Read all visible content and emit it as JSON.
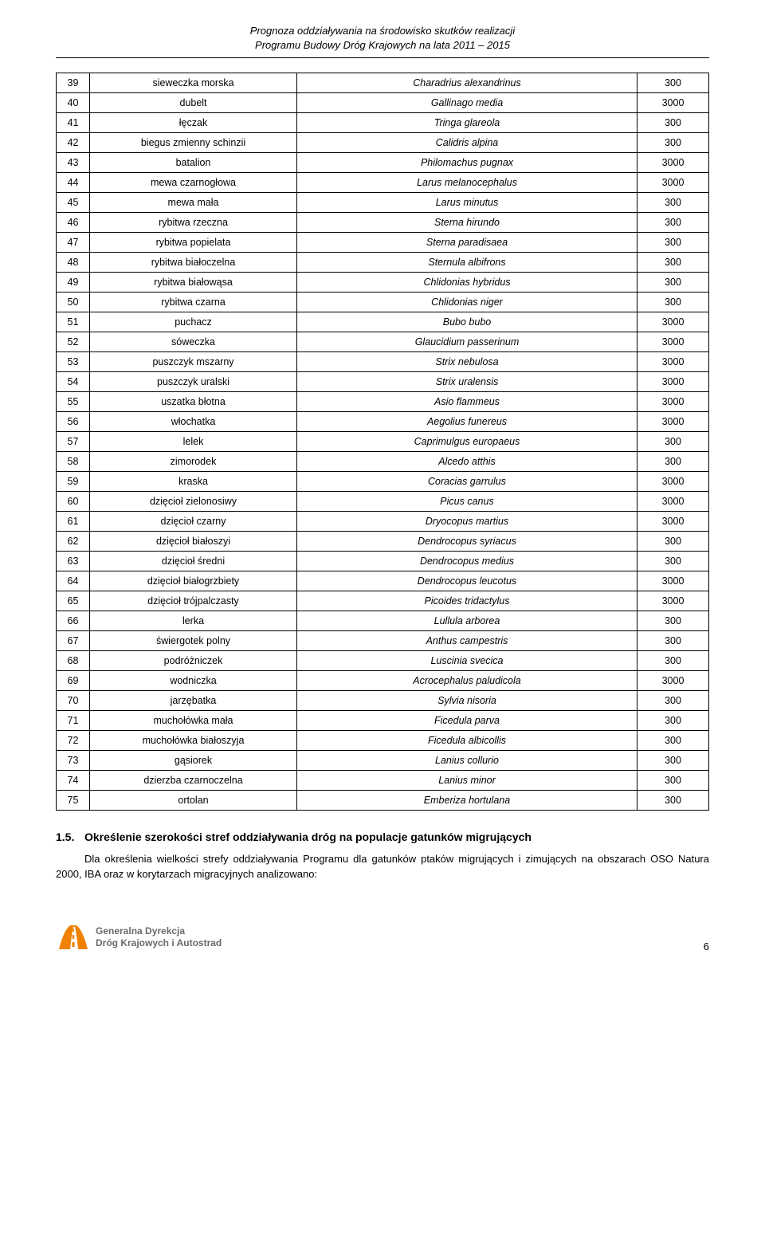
{
  "header": {
    "line1": "Prognoza oddziaływania na środowisko skutków realizacji",
    "line2": "Programu Budowy Dróg Krajowych na lata 2011 – 2015"
  },
  "rows": [
    {
      "n": "39",
      "pl": "sieweczka morska",
      "lat": "Charadrius alexandrinus",
      "v": "300"
    },
    {
      "n": "40",
      "pl": "dubelt",
      "lat": "Gallinago media",
      "v": "3000"
    },
    {
      "n": "41",
      "pl": "łęczak",
      "lat": "Tringa glareola",
      "v": "300"
    },
    {
      "n": "42",
      "pl": "biegus zmienny schinzii",
      "lat": "Calidris alpina",
      "v": "300"
    },
    {
      "n": "43",
      "pl": "batalion",
      "lat": "Philomachus pugnax",
      "v": "3000"
    },
    {
      "n": "44",
      "pl": "mewa czarnogłowa",
      "lat": "Larus melanocephalus",
      "v": "3000"
    },
    {
      "n": "45",
      "pl": "mewa mała",
      "lat": "Larus minutus",
      "v": "300"
    },
    {
      "n": "46",
      "pl": "rybitwa rzeczna",
      "lat": "Sterna hirundo",
      "v": "300"
    },
    {
      "n": "47",
      "pl": "rybitwa popielata",
      "lat": "Sterna paradisaea",
      "v": "300"
    },
    {
      "n": "48",
      "pl": "rybitwa białoczelna",
      "lat": "Sternula albifrons",
      "v": "300"
    },
    {
      "n": "49",
      "pl": "rybitwa białowąsa",
      "lat": "Chlidonias hybridus",
      "v": "300"
    },
    {
      "n": "50",
      "pl": "rybitwa czarna",
      "lat": "Chlidonias niger",
      "v": "300"
    },
    {
      "n": "51",
      "pl": "puchacz",
      "lat": "Bubo bubo",
      "v": "3000"
    },
    {
      "n": "52",
      "pl": "sóweczka",
      "lat": "Glaucidium passerinum",
      "v": "3000"
    },
    {
      "n": "53",
      "pl": "puszczyk mszarny",
      "lat": "Strix nebulosa",
      "v": "3000"
    },
    {
      "n": "54",
      "pl": "puszczyk uralski",
      "lat": "Strix uralensis",
      "v": "3000"
    },
    {
      "n": "55",
      "pl": "uszatka błotna",
      "lat": "Asio flammeus",
      "v": "3000"
    },
    {
      "n": "56",
      "pl": "włochatka",
      "lat": "Aegolius funereus",
      "v": "3000"
    },
    {
      "n": "57",
      "pl": "lelek",
      "lat": "Caprimulgus europaeus",
      "v": "300"
    },
    {
      "n": "58",
      "pl": "zimorodek",
      "lat": "Alcedo atthis",
      "v": "300"
    },
    {
      "n": "59",
      "pl": "kraska",
      "lat": "Coracias garrulus",
      "v": "3000"
    },
    {
      "n": "60",
      "pl": "dzięcioł zielonosiwy",
      "lat": "Picus canus",
      "v": "3000"
    },
    {
      "n": "61",
      "pl": "dzięcioł czarny",
      "lat": "Dryocopus martius",
      "v": "3000"
    },
    {
      "n": "62",
      "pl": "dzięcioł białoszyi",
      "lat": "Dendrocopus syriacus",
      "v": "300"
    },
    {
      "n": "63",
      "pl": "dzięcioł średni",
      "lat": "Dendrocopus medius",
      "v": "300"
    },
    {
      "n": "64",
      "pl": "dzięcioł białogrzbiety",
      "lat": "Dendrocopus leucotus",
      "v": "3000"
    },
    {
      "n": "65",
      "pl": "dzięcioł trójpalczasty",
      "lat": "Picoides tridactylus",
      "v": "3000"
    },
    {
      "n": "66",
      "pl": "lerka",
      "lat": "Lullula arborea",
      "v": "300"
    },
    {
      "n": "67",
      "pl": "świergotek polny",
      "lat": "Anthus campestris",
      "v": "300"
    },
    {
      "n": "68",
      "pl": "podróżniczek",
      "lat": "Luscinia svecica",
      "v": "300"
    },
    {
      "n": "69",
      "pl": "wodniczka",
      "lat": "Acrocephalus paludicola",
      "v": "3000"
    },
    {
      "n": "70",
      "pl": "jarzębatka",
      "lat": "Sylvia nisoria",
      "v": "300"
    },
    {
      "n": "71",
      "pl": "muchołówka mała",
      "lat": "Ficedula parva",
      "v": "300"
    },
    {
      "n": "72",
      "pl": "muchołówka białoszyja",
      "lat": "Ficedula albicollis",
      "v": "300"
    },
    {
      "n": "73",
      "pl": "gąsiorek",
      "lat": "Lanius collurio",
      "v": "300"
    },
    {
      "n": "74",
      "pl": "dzierzba czarnoczelna",
      "lat": "Lanius minor",
      "v": "300"
    },
    {
      "n": "75",
      "pl": "ortolan",
      "lat": "Emberiza hortulana",
      "v": "300"
    }
  ],
  "section": {
    "num": "1.5.",
    "title": "Określenie szerokości stref oddziaływania dróg na populacje gatunków migrujących",
    "body": "Dla określenia wielkości strefy oddziaływania Programu dla gatunków ptaków migrujących i zimujących na obszarach OSO Natura 2000, IBA oraz w korytarzach migracyjnych analizowano:"
  },
  "footer": {
    "logo_line1": "Generalna Dyrekcja",
    "logo_line2": "Dróg Krajowych i Autostrad",
    "page": "6"
  },
  "colors": {
    "logo_orange": "#f08000",
    "logo_text": "#6a6a6a"
  }
}
